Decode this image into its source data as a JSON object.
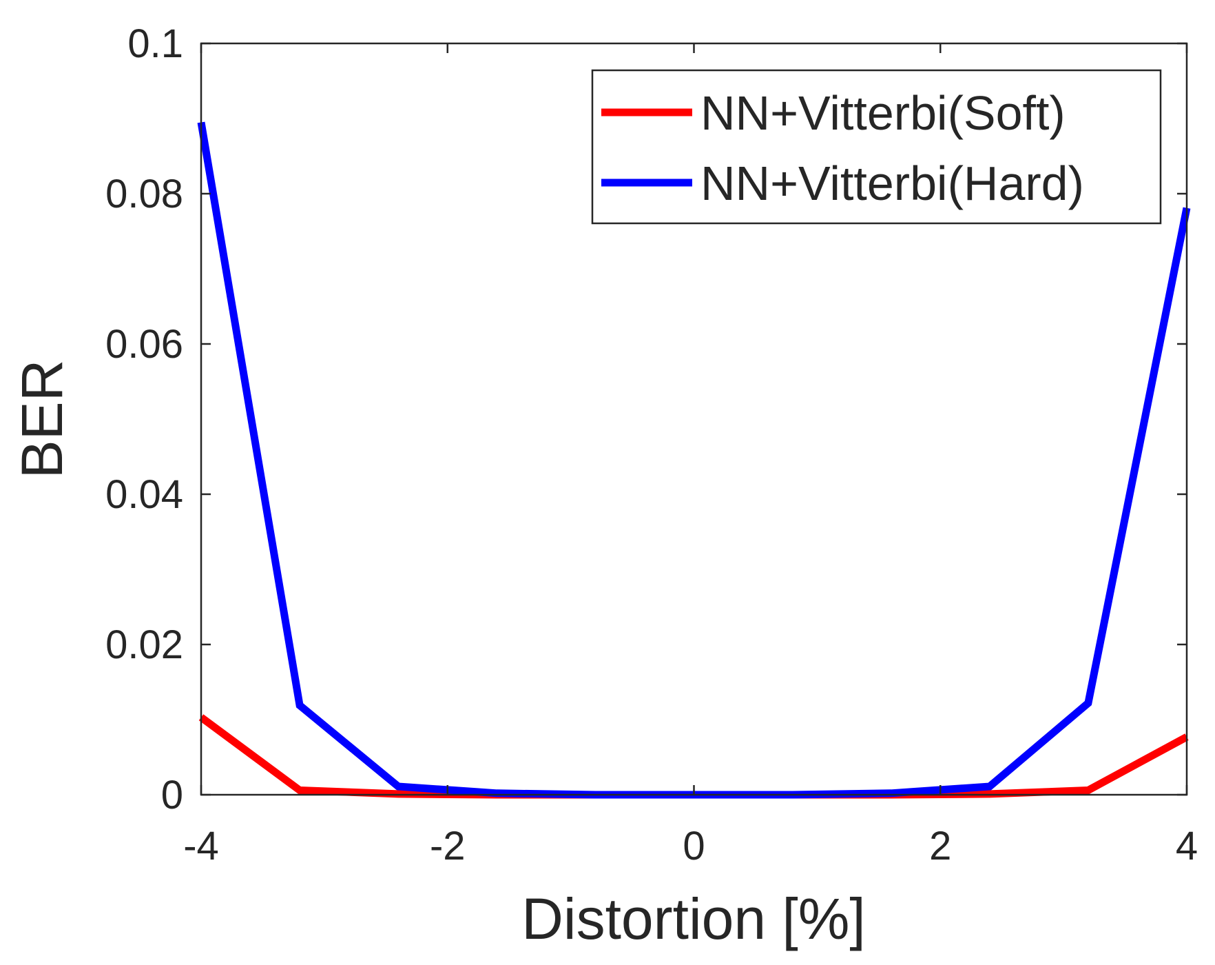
{
  "chart_data": {
    "type": "line",
    "title": "",
    "xlabel": "Distortion [%]",
    "ylabel": "BER",
    "xlim": [
      -4,
      4
    ],
    "ylim": [
      0,
      0.1
    ],
    "xticks": [
      -4,
      -2,
      0,
      2,
      4
    ],
    "xtick_labels": [
      "-4",
      "-2",
      "0",
      "2",
      "4"
    ],
    "yticks": [
      0,
      0.02,
      0.04,
      0.06,
      0.08,
      0.1
    ],
    "ytick_labels": [
      "0",
      "0.02",
      "0.04",
      "0.06",
      "0.08",
      "0.1"
    ],
    "grid": false,
    "legend_position": "top-right",
    "x": [
      -4,
      -3.2,
      -2.4,
      -1.6,
      -0.8,
      0,
      0.8,
      1.6,
      2.4,
      3.2,
      4
    ],
    "series": [
      {
        "name": "NN+Vitterbi(Soft)",
        "color": "#ff0000",
        "values": [
          0.0103,
          0.0006,
          0.0001,
          0.0,
          0.0,
          0.0,
          0.0,
          0.0,
          0.0001,
          0.0006,
          0.0077
        ]
      },
      {
        "name": "NN+Vitterbi(Hard)",
        "color": "#0000ff",
        "values": [
          0.0895,
          0.0119,
          0.0011,
          0.0002,
          0.0,
          0.0,
          0.0,
          0.0002,
          0.0011,
          0.0122,
          0.0781
        ]
      }
    ]
  }
}
